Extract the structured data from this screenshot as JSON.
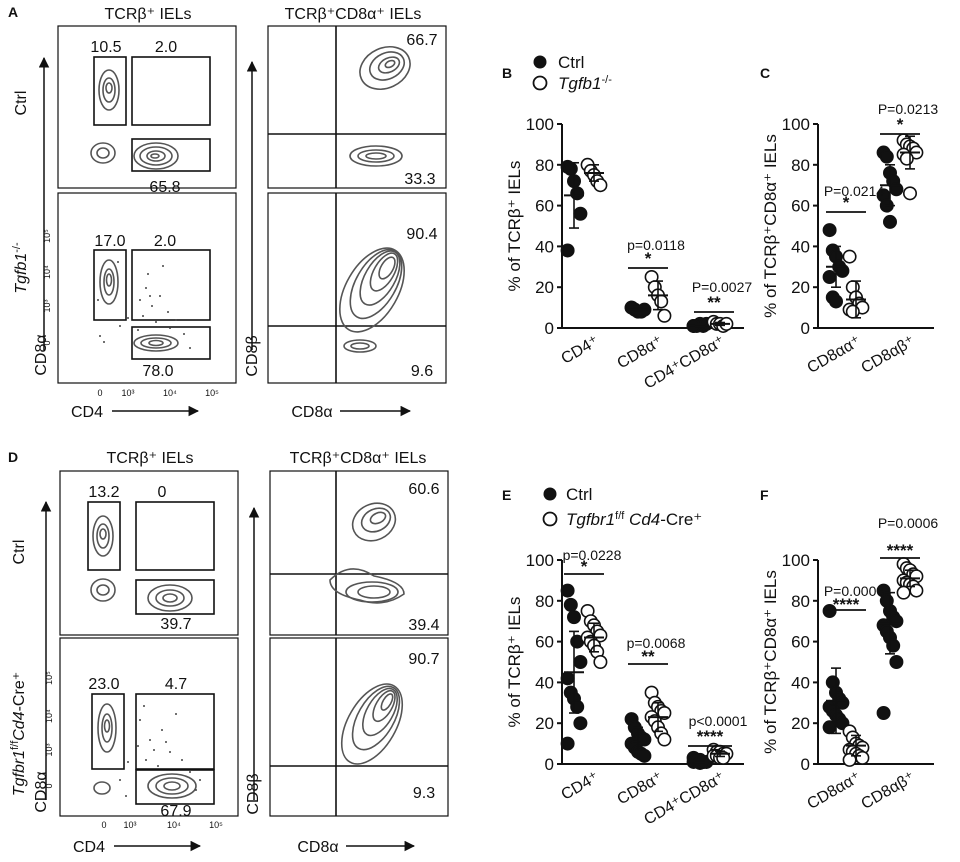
{
  "panels": [
    {
      "letter": "A",
      "flow": {
        "left_title": "TCRβ⁺ IELs",
        "right_title": "TCRβ⁺CD8α⁺ IELs",
        "row_labels": [
          "Ctrl",
          "Tgfb1",
          "-/-"
        ],
        "left_x_label": "CD4",
        "left_y_label": "CD8α",
        "right_x_label": "CD8α",
        "right_y_label": "CD8β",
        "tick_labels": [
          "0",
          "10³",
          "10⁴",
          "10⁵"
        ],
        "top_left": [
          "10.5",
          "2.0",
          "65.8"
        ],
        "bottom_left": [
          "17.0",
          "2.0",
          "78.0"
        ],
        "top_right": [
          "66.7",
          "33.3"
        ],
        "bottom_right": [
          "90.4",
          "9.6"
        ]
      }
    },
    {
      "letter": "D",
      "flow": {
        "left_title": "TCRβ⁺ IELs",
        "right_title": "TCRβ⁺CD8α⁺ IELs",
        "row_labels": [
          "Ctrl",
          "Tgfbr1",
          "f/f",
          "Cd4",
          "-Cre⁺"
        ],
        "left_x_label": "CD4",
        "left_y_label": "CD8α",
        "right_x_label": "CD8α",
        "right_y_label": "CD8β",
        "tick_labels": [
          "0",
          "10³",
          "10⁴",
          "10⁵"
        ],
        "top_left": [
          "13.2",
          "0",
          "39.7"
        ],
        "bottom_left": [
          "23.0",
          "4.7",
          "67.9"
        ],
        "top_right": [
          "60.6",
          "39.4"
        ],
        "bottom_right": [
          "90.7",
          "9.3"
        ]
      }
    }
  ],
  "legends": {
    "B": {
      "ctrl": "Ctrl",
      "ko": "Tgfb1",
      "ko_sup": "-/-"
    },
    "E": {
      "ctrl": "Ctrl",
      "ko": "Tgfbr1",
      "ko_sup": "f/f",
      "ko2": " Cd4",
      "ko3": "-Cre⁺"
    }
  },
  "chart_data": [
    {
      "letter": "B",
      "type": "scatter",
      "ylabel": "% of TCRβ⁺ IELs",
      "ylim": [
        0,
        100
      ],
      "yticks": [
        0,
        20,
        40,
        60,
        80,
        100
      ],
      "categories": [
        "CD4⁺",
        "CD8α⁺",
        "CD4⁺CD8α⁺"
      ],
      "series": [
        {
          "name": "Ctrl",
          "filled": true,
          "groups": [
            [
              79,
              78,
              72,
              66,
              56,
              38
            ],
            [
              10,
              9,
              8,
              8,
              9,
              10
            ],
            [
              1,
              1,
              2,
              1,
              2,
              1
            ]
          ],
          "means": [
            65,
            9,
            1.3
          ],
          "sd": [
            16,
            1.5,
            0.5
          ]
        },
        {
          "name": "Tgfb1-/-",
          "filled": false,
          "groups": [
            [
              80,
              77,
              75,
              72,
              70
            ],
            [
              25,
              20,
              16,
              13,
              6
            ],
            [
              3,
              2,
              2,
              1,
              2
            ]
          ],
          "means": [
            76,
            16,
            2
          ],
          "sd": [
            4,
            7,
            0.7
          ]
        }
      ],
      "annotations": [
        {
          "p": "p=0.0118",
          "stars": "*"
        },
        {
          "p": "P=0.0027",
          "stars": "**"
        }
      ]
    },
    {
      "letter": "C",
      "type": "scatter",
      "ylabel": "% of TCRβ⁺CD8α⁺ IELs",
      "ylim": [
        0,
        100
      ],
      "yticks": [
        0,
        20,
        40,
        60,
        80,
        100
      ],
      "categories": [
        "CD8αα⁺",
        "CD8αβ⁺"
      ],
      "series": [
        {
          "name": "Ctrl",
          "filled": true,
          "groups": [
            [
              48,
              38,
              35,
              30,
              28,
              25,
              15,
              13
            ],
            [
              86,
              84,
              76,
              72,
              68,
              65,
              60,
              52
            ]
          ],
          "means": [
            30,
            70
          ],
          "sd": [
            10,
            10
          ]
        },
        {
          "name": "Tgfb1-/-",
          "filled": false,
          "groups": [
            [
              35,
              20,
              15,
              12,
              10,
              9,
              8
            ],
            [
              92,
              90,
              89,
              88,
              86,
              85,
              83,
              66
            ]
          ],
          "means": [
            14,
            86
          ],
          "sd": [
            9,
            8
          ]
        }
      ],
      "annotations": [
        {
          "p": "P=0.0214",
          "stars": "*"
        },
        {
          "p": "P=0.0213",
          "stars": "*"
        }
      ]
    },
    {
      "letter": "E",
      "type": "scatter",
      "ylabel": "% of TCRβ⁺ IELs",
      "ylim": [
        0,
        100
      ],
      "yticks": [
        0,
        20,
        40,
        60,
        80,
        100
      ],
      "categories": [
        "CD4⁺",
        "CD8α⁺",
        "CD4⁺CD8α⁺"
      ],
      "series": [
        {
          "name": "Ctrl",
          "filled": true,
          "groups": [
            [
              85,
              78,
              72,
              60,
              50,
              42,
              35,
              32,
              28,
              20,
              10
            ],
            [
              22,
              18,
              15,
              13,
              12,
              10,
              8,
              6,
              5,
              4
            ],
            [
              3,
              2,
              2,
              1,
              1,
              1,
              2,
              0.5,
              1
            ]
          ],
          "means": [
            45,
            12,
            1.5
          ],
          "sd": [
            20,
            6,
            0.8
          ]
        },
        {
          "name": "Tgfbr1 f/f Cd4-Cre+",
          "filled": false,
          "groups": [
            [
              75,
              70,
              68,
              65,
              63,
              62,
              60,
              58,
              55,
              50
            ],
            [
              35,
              30,
              28,
              26,
              25,
              23,
              21,
              18,
              15,
              12
            ],
            [
              7,
              6,
              6,
              5,
              5,
              4,
              4,
              3,
              3
            ]
          ],
          "means": [
            62,
            23,
            5
          ],
          "sd": [
            7,
            7,
            1.3
          ]
        }
      ],
      "annotations": [
        {
          "p": "p=0.0228",
          "stars": "*"
        },
        {
          "p": "p=0.0068",
          "stars": "**"
        },
        {
          "p": "p<0.0001",
          "stars": "****"
        }
      ]
    },
    {
      "letter": "F",
      "type": "scatter",
      "ylabel": "% of TCRβ⁺CD8α⁺ IELs",
      "ylim": [
        0,
        100
      ],
      "yticks": [
        0,
        20,
        40,
        60,
        80,
        100
      ],
      "categories": [
        "CD8αα⁺",
        "CD8αβ⁺"
      ],
      "series": [
        {
          "name": "Ctrl",
          "filled": true,
          "groups": [
            [
              75,
              40,
              35,
              32,
              30,
              28,
              26,
              24,
              22,
              20,
              18
            ],
            [
              85,
              80,
              75,
              72,
              70,
              68,
              65,
              62,
              58,
              50,
              25
            ]
          ],
          "means": [
            31,
            69
          ],
          "sd": [
            16,
            15
          ]
        },
        {
          "name": "Tgfbr1 f/f Cd4-Cre+",
          "filled": false,
          "groups": [
            [
              16,
              13,
              10,
              9,
              8,
              7,
              6,
              5,
              4,
              3,
              2
            ],
            [
              98,
              96,
              95,
              93,
              92,
              90,
              89,
              88,
              87,
              85,
              84
            ]
          ],
          "means": [
            9,
            91
          ],
          "sd": [
            5,
            4
          ]
        }
      ],
      "annotations": [
        {
          "p": "P=0.0006",
          "stars": "****"
        },
        {
          "p": "P=0.0006",
          "stars": "****"
        }
      ]
    }
  ]
}
